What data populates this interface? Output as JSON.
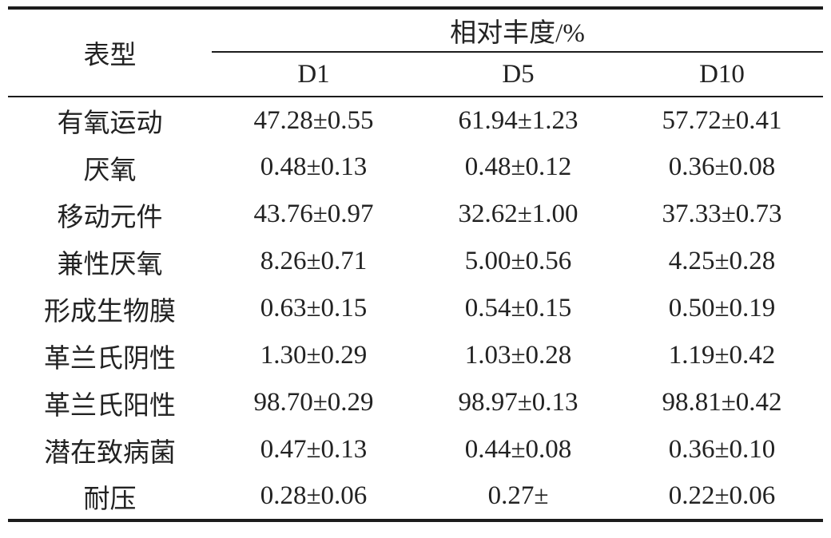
{
  "table": {
    "corner_header": "表型",
    "group_header": "相对丰度/%",
    "sub_headers": [
      "D1",
      "D5",
      "D10"
    ],
    "rows": [
      {
        "label": "有氧运动",
        "d1": "47.28±0.55",
        "d5": "61.94±1.23",
        "d10": "57.72±0.41"
      },
      {
        "label": "厌氧",
        "d1": "0.48±0.13",
        "d5": "0.48±0.12",
        "d10": "0.36±0.08"
      },
      {
        "label": "移动元件",
        "d1": "43.76±0.97",
        "d5": "32.62±1.00",
        "d10": "37.33±0.73"
      },
      {
        "label": "兼性厌氧",
        "d1": "8.26±0.71",
        "d5": "5.00±0.56",
        "d10": "4.25±0.28"
      },
      {
        "label": "形成生物膜",
        "d1": "0.63±0.15",
        "d5": "0.54±0.15",
        "d10": "0.50±0.19"
      },
      {
        "label": "革兰氏阴性",
        "d1": "1.30±0.29",
        "d5": "1.03±0.28",
        "d10": "1.19±0.42"
      },
      {
        "label": "革兰氏阳性",
        "d1": "98.70±0.29",
        "d5": "98.97±0.13",
        "d10": "98.81±0.42"
      },
      {
        "label": "潜在致病菌",
        "d1": "0.47±0.13",
        "d5": "0.44±0.08",
        "d10": "0.36±0.10"
      },
      {
        "label": "耐压",
        "d1": "0.28±0.06",
        "d5": "0.27±",
        "d10": "0.22±0.06"
      }
    ]
  },
  "chart_data": {
    "type": "table",
    "title": "相对丰度/%",
    "row_header": "表型",
    "categories": [
      "有氧运动",
      "厌氧",
      "移动元件",
      "兼性厌氧",
      "形成生物膜",
      "革兰氏阴性",
      "革兰氏阳性",
      "潜在致病菌",
      "耐压"
    ],
    "series": [
      {
        "name": "D1",
        "mean": [
          47.28,
          0.48,
          43.76,
          8.26,
          0.63,
          1.3,
          98.7,
          0.47,
          0.28
        ],
        "sd": [
          0.55,
          0.13,
          0.97,
          0.71,
          0.15,
          0.29,
          0.29,
          0.13,
          0.06
        ]
      },
      {
        "name": "D5",
        "mean": [
          61.94,
          0.48,
          32.62,
          5.0,
          0.54,
          1.03,
          98.97,
          0.44,
          0.27
        ],
        "sd": [
          1.23,
          0.12,
          1.0,
          0.56,
          0.15,
          0.28,
          0.13,
          0.08,
          null
        ]
      },
      {
        "name": "D10",
        "mean": [
          57.72,
          0.36,
          37.33,
          4.25,
          0.5,
          1.19,
          98.81,
          0.36,
          0.22
        ],
        "sd": [
          0.41,
          0.08,
          0.73,
          0.28,
          0.19,
          0.42,
          0.42,
          0.1,
          0.06
        ]
      }
    ],
    "colors": {
      "text": "#222222",
      "rule": "#1c1c1c",
      "background": "#ffffff"
    }
  }
}
